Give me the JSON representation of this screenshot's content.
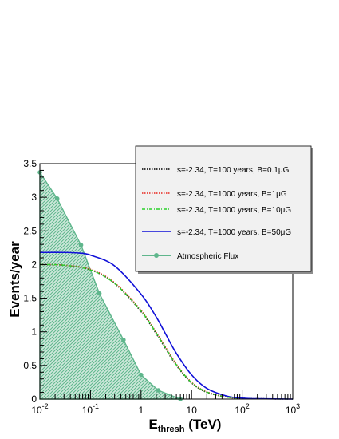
{
  "chart_data": {
    "type": "line",
    "xlabel_main": "E",
    "xlabel_sub": "thresh",
    "xlabel_unit": " (TeV)",
    "ylabel": "Events/year",
    "x_scale": "log",
    "xlim": [
      0.01,
      1000
    ],
    "ylim": [
      0,
      3.5
    ],
    "x_ticks": [
      {
        "value": 0.01,
        "base": "10",
        "exp": "-2"
      },
      {
        "value": 0.1,
        "base": "10",
        "exp": "-1"
      },
      {
        "value": 1,
        "base": "1",
        "exp": ""
      },
      {
        "value": 10,
        "base": "10",
        "exp": ""
      },
      {
        "value": 100,
        "base": "10",
        "exp": "2"
      },
      {
        "value": 1000,
        "base": "10",
        "exp": "3"
      }
    ],
    "y_ticks": [
      "0",
      "0.5",
      "1",
      "1.5",
      "2",
      "2.5",
      "3",
      "3.5"
    ],
    "y_tick_values": [
      0,
      0.5,
      1,
      1.5,
      2,
      2.5,
      3,
      3.5
    ],
    "legend_position": "top-right",
    "series": [
      {
        "name": "s=-2.34, T=100 years, B=0.1μG",
        "color": "#000000",
        "style": "dotted",
        "x": [
          0.01,
          0.03,
          0.1,
          0.3,
          1,
          2,
          3,
          5,
          10,
          20,
          50,
          100,
          200,
          1000
        ],
        "y": [
          2.0,
          1.99,
          1.92,
          1.72,
          1.3,
          0.97,
          0.76,
          0.5,
          0.24,
          0.1,
          0.03,
          0.012,
          0.005,
          0.0
        ]
      },
      {
        "name": "s=-2.34, T=1000 years, B=1μG",
        "color": "#e8261e",
        "style": "dotted",
        "x": [
          0.01,
          0.03,
          0.1,
          0.3,
          1,
          2,
          3,
          5,
          10,
          20,
          50,
          100,
          200,
          1000
        ],
        "y": [
          2.0,
          1.99,
          1.93,
          1.73,
          1.32,
          0.99,
          0.78,
          0.52,
          0.25,
          0.11,
          0.03,
          0.012,
          0.005,
          0.0
        ]
      },
      {
        "name": "s=-2.34, T=1000 years, B=10μG",
        "color": "#2ad12a",
        "style": "dashdot",
        "x": [
          0.01,
          0.03,
          0.1,
          0.3,
          1,
          2,
          3,
          5,
          10,
          20,
          50,
          100,
          200,
          1000
        ],
        "y": [
          2.0,
          1.99,
          1.92,
          1.72,
          1.31,
          0.98,
          0.77,
          0.51,
          0.245,
          0.105,
          0.03,
          0.012,
          0.005,
          0.0
        ]
      },
      {
        "name": "s=-2.34, T=1000 years, B=50μG",
        "color": "#1010d8",
        "style": "solid",
        "x": [
          0.01,
          0.03,
          0.06,
          0.1,
          0.3,
          1,
          2,
          3,
          5,
          10,
          20,
          50,
          100,
          200,
          1000
        ],
        "y": [
          2.18,
          2.18,
          2.17,
          2.14,
          1.98,
          1.56,
          1.22,
          0.98,
          0.68,
          0.36,
          0.16,
          0.045,
          0.015,
          0.005,
          0.0
        ]
      }
    ],
    "area_series": {
      "name": "Atmospheric Flux",
      "color": "#5fb68c",
      "x": [
        0.01,
        0.022,
        0.065,
        0.15,
        0.45,
        1.0,
        2.2,
        6.0
      ],
      "y": [
        3.37,
        2.98,
        2.29,
        1.57,
        0.88,
        0.36,
        0.13,
        0.0
      ]
    }
  }
}
